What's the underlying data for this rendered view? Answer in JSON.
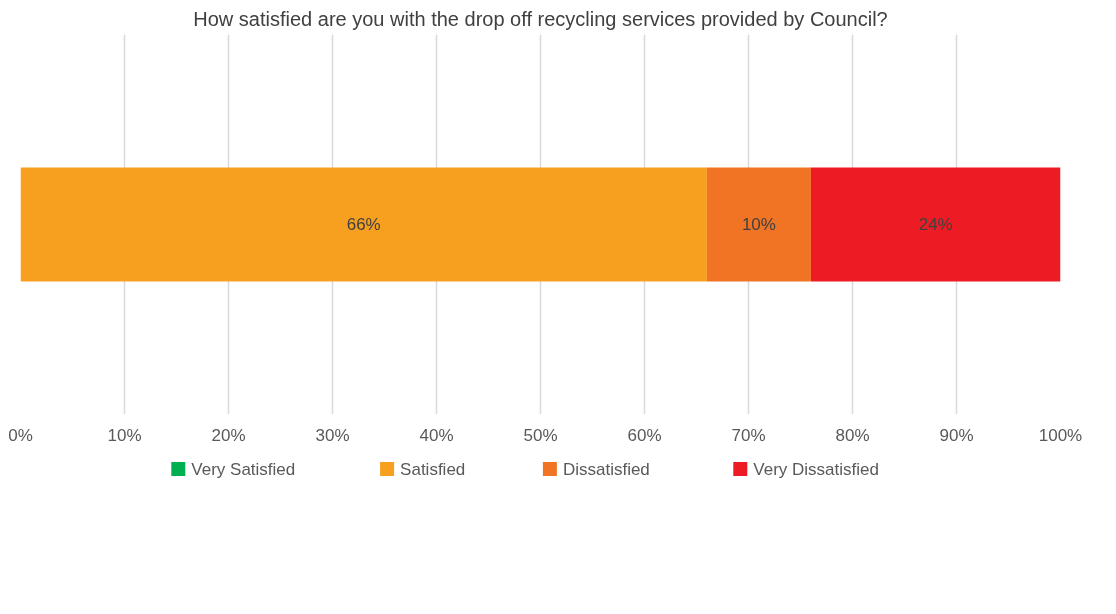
{
  "chart_data": {
    "type": "bar",
    "orientation": "horizontal",
    "stacked": true,
    "title": "How satisfied are you with the drop off recycling services provided by Council?",
    "categories": [
      null
    ],
    "series": [
      {
        "name": "Very Satisfied",
        "color": "#00b050",
        "values": [
          0
        ],
        "value_labels": [
          null
        ]
      },
      {
        "name": "Satisfied",
        "color": "#f7a01f",
        "values": [
          66
        ],
        "value_labels": [
          "66%"
        ]
      },
      {
        "name": "Dissatisfied",
        "color": "#f07423",
        "values": [
          10
        ],
        "value_labels": [
          "10%"
        ]
      },
      {
        "name": "Very Dissatisfied",
        "color": "#ed1c24",
        "values": [
          24
        ],
        "value_labels": [
          "24%"
        ]
      }
    ],
    "xlim": [
      0,
      100
    ],
    "xticks": [
      {
        "value": 0,
        "label": "0%"
      },
      {
        "value": 10,
        "label": "10%"
      },
      {
        "value": 20,
        "label": "20%"
      },
      {
        "value": 30,
        "label": "30%"
      },
      {
        "value": 40,
        "label": "40%"
      },
      {
        "value": 50,
        "label": "50%"
      },
      {
        "value": 60,
        "label": "60%"
      },
      {
        "value": 70,
        "label": "70%"
      },
      {
        "value": 80,
        "label": "80%"
      },
      {
        "value": 90,
        "label": "90%"
      },
      {
        "value": 100,
        "label": "100%"
      }
    ],
    "grid": "x",
    "legend": "bottom",
    "tick_labels": "x"
  }
}
